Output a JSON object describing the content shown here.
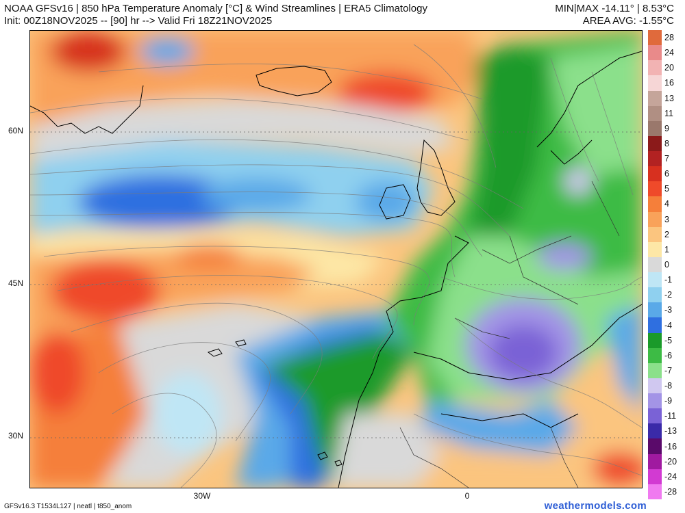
{
  "header": {
    "title_line1": "NOAA GFSv16 | 850 hPa Temperature Anomaly [°C] & Wind Streamlines | ERA5 Climatology",
    "title_line2": "Init: 00Z18NOV2025 -- [90] hr --> Valid Fri 18Z21NOV2025",
    "minmax": "MIN|MAX -14.11° | 8.53°C",
    "area_avg": "AREA AVG: -1.55°C"
  },
  "map": {
    "lat_labels": [
      {
        "text": "60N",
        "lat": 60
      },
      {
        "text": "45N",
        "lat": 45
      },
      {
        "text": "30N",
        "lat": 30
      }
    ],
    "lon_labels": [
      {
        "text": "30W",
        "lon": -30
      },
      {
        "text": "0",
        "lon": 0
      }
    ]
  },
  "colorbar": {
    "levels": [
      {
        "label": "28",
        "color": "#e06a3c"
      },
      {
        "label": "24",
        "color": "#e98a8a"
      },
      {
        "label": "20",
        "color": "#f2b3b3"
      },
      {
        "label": "16",
        "color": "#f6d6d6"
      },
      {
        "label": "13",
        "color": "#c5a59a"
      },
      {
        "label": "11",
        "color": "#b08f83"
      },
      {
        "label": "9",
        "color": "#9a786c"
      },
      {
        "label": "8",
        "color": "#8b1a1a"
      },
      {
        "label": "7",
        "color": "#b22222"
      },
      {
        "label": "6",
        "color": "#d7301f"
      },
      {
        "label": "5",
        "color": "#ef4a2a"
      },
      {
        "label": "4",
        "color": "#f57f3a"
      },
      {
        "label": "3",
        "color": "#f9a25a"
      },
      {
        "label": "2",
        "color": "#fbc57f"
      },
      {
        "label": "1",
        "color": "#fde7a6"
      },
      {
        "label": "0",
        "color": "#d9d9d9"
      },
      {
        "label": "-1",
        "color": "#bfe6f5"
      },
      {
        "label": "-2",
        "color": "#8fd0ef"
      },
      {
        "label": "-3",
        "color": "#5aa9e8"
      },
      {
        "label": "-4",
        "color": "#2f6fe0"
      },
      {
        "label": "-5",
        "color": "#1a9a2a"
      },
      {
        "label": "-6",
        "color": "#3dbb45"
      },
      {
        "label": "-7",
        "color": "#8be08b"
      },
      {
        "label": "-8",
        "color": "#d0c8f0"
      },
      {
        "label": "-9",
        "color": "#a394e6"
      },
      {
        "label": "-11",
        "color": "#7a62d6"
      },
      {
        "label": "-13",
        "color": "#3a2aa8"
      },
      {
        "label": "-16",
        "color": "#5a0a6a"
      },
      {
        "label": "-20",
        "color": "#a01aa0"
      },
      {
        "label": "-24",
        "color": "#d23ad2"
      },
      {
        "label": "-28",
        "color": "#f07af0"
      }
    ]
  },
  "footer": {
    "model_info": "GFSv16.3 T1534L127 | neatl | t850_anom",
    "brand": "weathermodels.com"
  }
}
